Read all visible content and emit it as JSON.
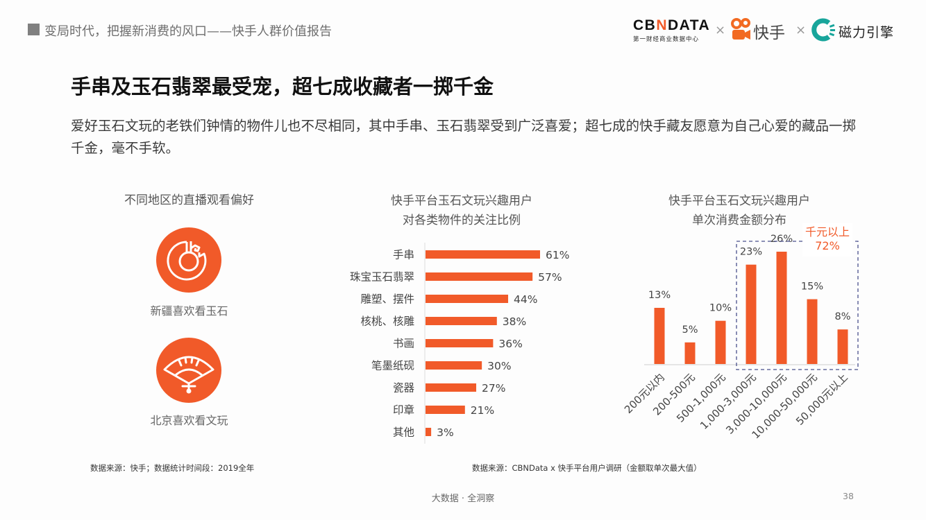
{
  "header": {
    "report_title": "变局时代，把握新消费的风口——快手人群价值报告",
    "logos": {
      "cbndata_main": "CBNDATA",
      "cbndata_sub": "第一财经商业数据中心",
      "times_symbol": "×",
      "kuaishou": "快手",
      "cili": "磁力引擎"
    }
  },
  "main": {
    "title": "手串及玉石翡翠最受宠，超七成收藏者一掷千金",
    "description": "爱好玉石文玩的老铁们钟情的物件儿也不尽相同，其中手串、玉石翡翠受到广泛喜爱；超七成的快手藏友愿意为自己心爱的藏品一掷千金，毫不手软。"
  },
  "left_panel": {
    "title": "不同地区的直播观看偏好",
    "items": [
      {
        "icon": "jade-pendant-icon",
        "label": "新疆喜欢看玉石"
      },
      {
        "icon": "folding-fan-icon",
        "label": "北京喜欢看文玩"
      }
    ]
  },
  "colors": {
    "accent": "#f15a29",
    "dashed_box": "#4a4f8c",
    "text_gray": "#555555"
  },
  "chart_data": [
    {
      "type": "bar",
      "orientation": "horizontal",
      "title": "快手平台玉石文玩兴趣用户\n对各类物件的关注比例",
      "title_lines": [
        "快手平台玉石文玩兴趣用户",
        "对各类物件的关注比例"
      ],
      "categories": [
        "手串",
        "珠宝玉石翡翠",
        "雕塑、摆件",
        "核桃、核雕",
        "书画",
        "笔墨纸砚",
        "瓷器",
        "印章",
        "其他"
      ],
      "values": [
        61,
        57,
        44,
        38,
        36,
        30,
        27,
        21,
        3
      ],
      "value_labels": [
        "61%",
        "57%",
        "44%",
        "38%",
        "36%",
        "30%",
        "27%",
        "21%",
        "3%"
      ],
      "unit": "%",
      "xlim": [
        0,
        65
      ],
      "grid": false,
      "source": "数据来源：快手；数据统计时间段：2019全年"
    },
    {
      "type": "bar",
      "orientation": "vertical",
      "title": "快手平台玉石文玩兴趣用户\n单次消费金额分布",
      "title_lines": [
        "快手平台玉石文玩兴趣用户",
        "单次消费金额分布"
      ],
      "categories": [
        "200元以内",
        "200-500元",
        "500-1,000元",
        "1,000-3,000元",
        "3,000-10,000元",
        "10,000-50,000元",
        "50,000元以上"
      ],
      "values": [
        13,
        5,
        10,
        23,
        26,
        15,
        8
      ],
      "value_labels": [
        "13%",
        "5%",
        "10%",
        "23%",
        "26%",
        "15%",
        "8%"
      ],
      "unit": "%",
      "ylim": [
        0,
        30
      ],
      "grid": false,
      "annotation": {
        "label": "千元以上",
        "value": "72%",
        "highlight_categories": [
          "1,000-3,000元",
          "3,000-10,000元",
          "10,000-50,000元",
          "50,000元以上"
        ]
      },
      "source": "数据来源：CBNData x 快手平台用户调研（金额取单次最大值）"
    }
  ],
  "footer": {
    "center": "大数据 · 全洞察",
    "page_number": "38"
  }
}
